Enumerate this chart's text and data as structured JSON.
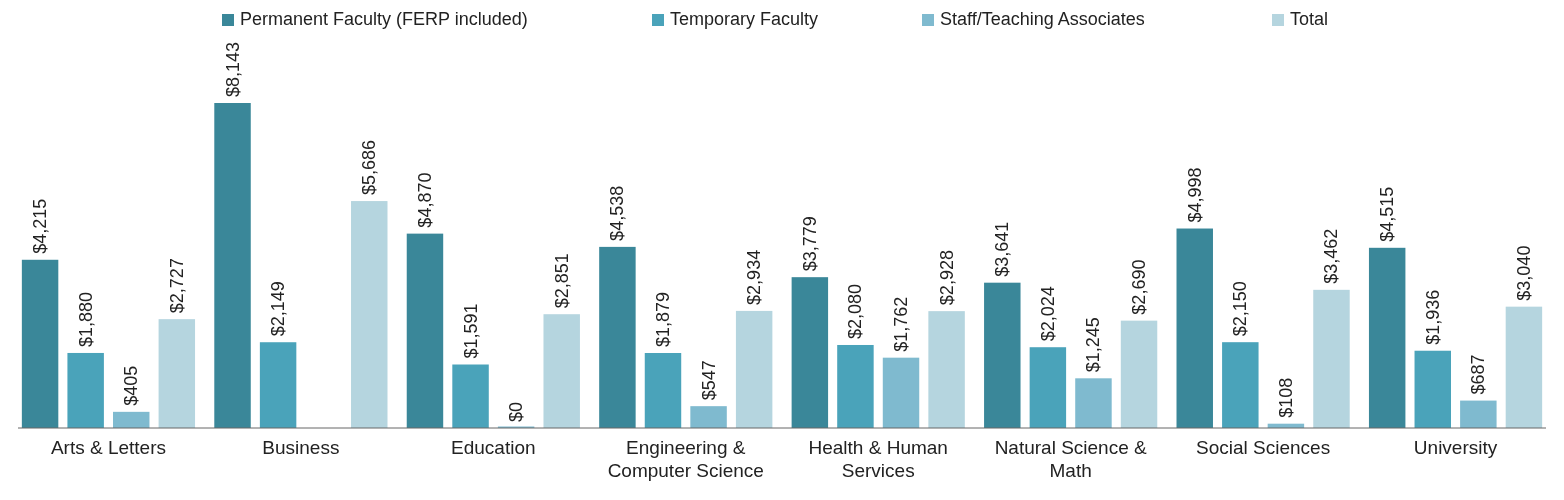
{
  "chart_data": {
    "type": "bar",
    "categories": [
      "Arts & Letters",
      "Business",
      "Education",
      "Engineering & Computer Science",
      "Health & Human Services",
      "Natural Science & Math",
      "Social Sciences",
      "University"
    ],
    "series": [
      {
        "name": "Permanent Faculty (FERP included)",
        "color": "#3a8799",
        "values": [
          4215,
          8143,
          4870,
          4538,
          3779,
          3641,
          4998,
          4515
        ],
        "value_labels": [
          "$4,215",
          "$8,143",
          "$4,870",
          "$4,538",
          "$3,779",
          "$3,641",
          "$4,998",
          "$4,515"
        ]
      },
      {
        "name": "Temporary Faculty",
        "color": "#4aa3ba",
        "values": [
          1880,
          2149,
          1591,
          1879,
          2080,
          2024,
          2150,
          1936
        ],
        "value_labels": [
          "$1,880",
          "$2,149",
          "$1,591",
          "$1,879",
          "$2,080",
          "$2,024",
          "$2,150",
          "$1,936"
        ]
      },
      {
        "name": "Staff/Teaching Associates",
        "color": "#7fbacf",
        "values": [
          405,
          null,
          0,
          547,
          1762,
          1245,
          108,
          687
        ],
        "value_labels": [
          "$405",
          null,
          "$0",
          "$547",
          "$1,762",
          "$1,245",
          "$108",
          "$687"
        ]
      },
      {
        "name": "Total",
        "color": "#b5d5df",
        "values": [
          2727,
          5686,
          2851,
          2934,
          2928,
          2690,
          3462,
          3040
        ],
        "value_labels": [
          "$2,727",
          "$5,686",
          "$2,851",
          "$2,934",
          "$2,928",
          "$2,690",
          "$3,462",
          "$3,040"
        ]
      }
    ],
    "legend": "top"
  }
}
